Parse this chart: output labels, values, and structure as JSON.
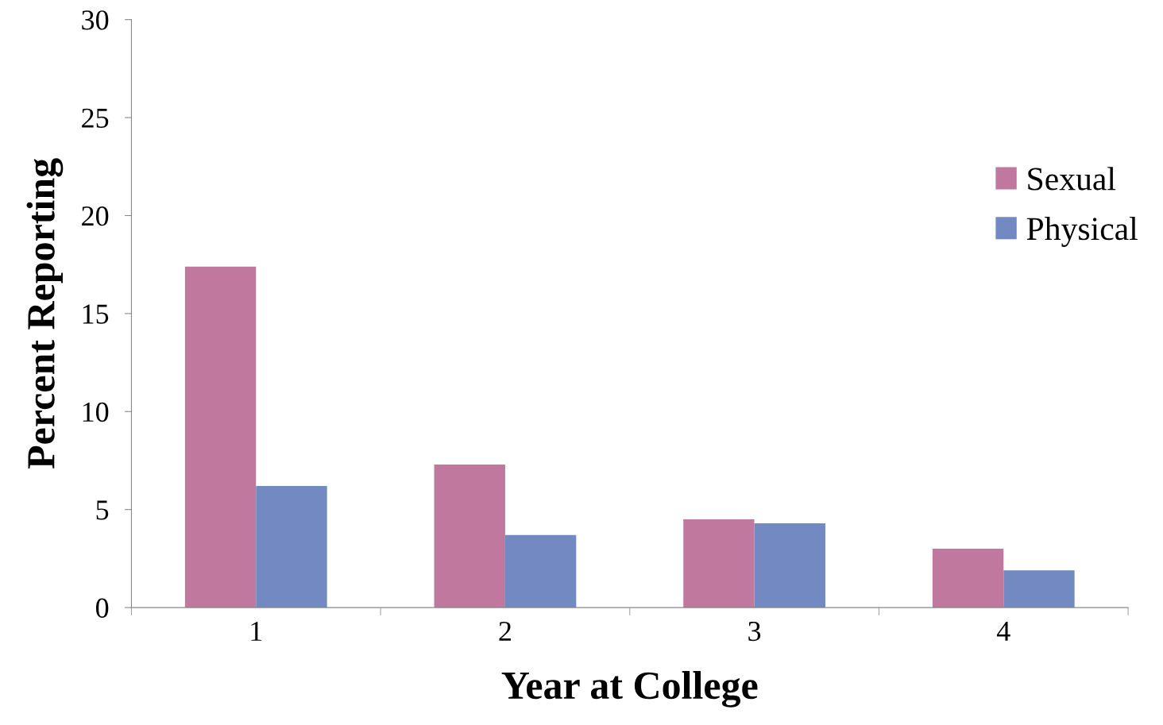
{
  "chart_data": {
    "type": "bar",
    "xlabel": "Year at College",
    "ylabel": "Percent Reporting",
    "categories": [
      "1",
      "2",
      "3",
      "4"
    ],
    "series": [
      {
        "name": "Sexual",
        "color": "#c0789f",
        "values": [
          17.4,
          7.3,
          4.5,
          3.0
        ]
      },
      {
        "name": "Physical",
        "color": "#7389c2",
        "values": [
          6.2,
          3.7,
          4.3,
          1.9
        ]
      }
    ],
    "ylim": [
      0,
      30
    ],
    "yticks": [
      0,
      5,
      10,
      15,
      20,
      25,
      30
    ],
    "grid": false,
    "legend": "top right"
  }
}
